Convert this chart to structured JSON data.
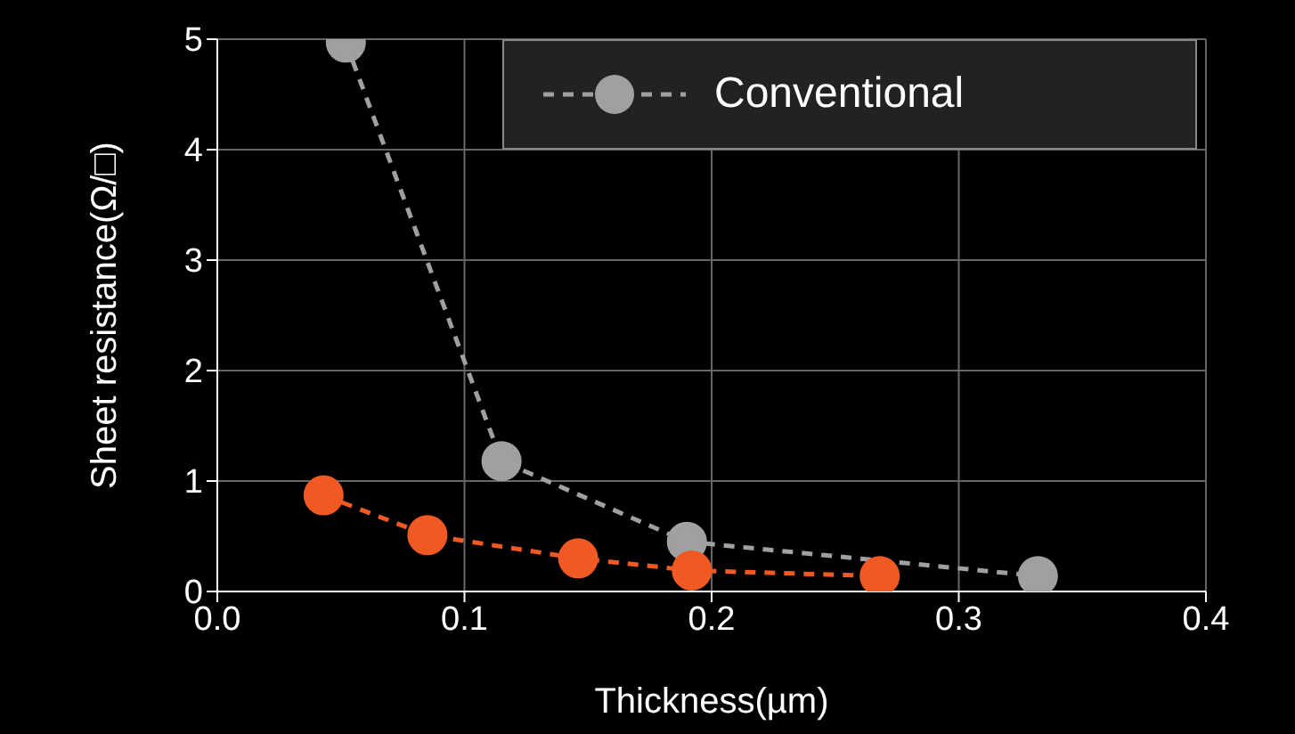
{
  "chart_data": {
    "type": "line",
    "xlabel": "Thickness(µm)",
    "ylabel": "Sheet resistance(Ω/□)",
    "xlim": [
      0,
      0.4
    ],
    "xticks": [
      {
        "value": 0,
        "label": "0.0"
      },
      {
        "value": 0.1,
        "label": "0.1"
      },
      {
        "value": 0.2,
        "label": "0.2"
      },
      {
        "value": 0.3,
        "label": "0.3"
      },
      {
        "value": 0.4,
        "label": "0.4"
      }
    ],
    "ylim": [
      0,
      5
    ],
    "yticks": [
      0,
      1,
      2,
      3,
      4,
      5
    ],
    "grid": true,
    "legend": "top right",
    "marker": "circle",
    "line_style": "dashed",
    "series": [
      {
        "name": "Conventional",
        "color": "#a0a0a0",
        "x": [
          0.052,
          0.115,
          0.19,
          0.332
        ],
        "values": [
          4.97,
          1.18,
          0.45,
          0.14
        ]
      },
      {
        "color": "#f05a22",
        "x": [
          0.043,
          0.085,
          0.146,
          0.192,
          0.268
        ],
        "values": [
          0.87,
          0.51,
          0.3,
          0.19,
          0.14
        ]
      }
    ]
  }
}
